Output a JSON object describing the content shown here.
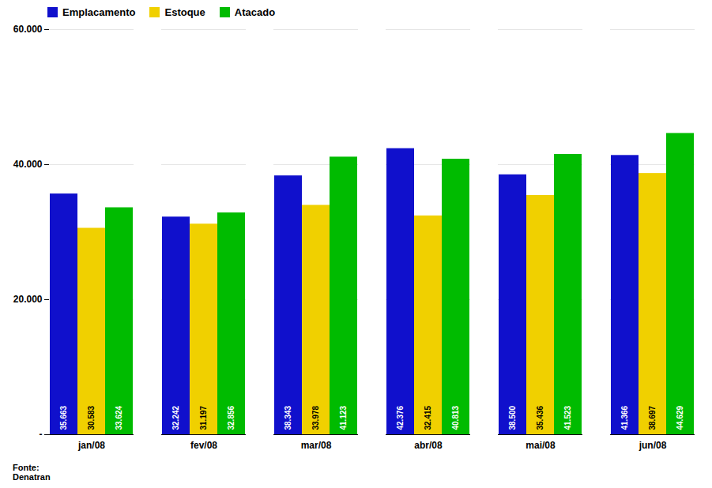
{
  "chart_data": {
    "type": "bar",
    "categories": [
      "jan/08",
      "fev/08",
      "mar/08",
      "abr/08",
      "mai/08",
      "jun/08"
    ],
    "series": [
      {
        "name": "Emplacamento",
        "color": "#1010cc",
        "values": [
          35663,
          32242,
          38343,
          42376,
          38500,
          41366
        ],
        "value_labels": [
          "35.663",
          "32.242",
          "38.343",
          "42.376",
          "38.500",
          "41.366"
        ]
      },
      {
        "name": "Estoque",
        "color": "#f0d000",
        "values": [
          30583,
          31197,
          33978,
          32415,
          35436,
          38697
        ],
        "value_labels": [
          "30.583",
          "31.197",
          "33.978",
          "32.415",
          "35.436",
          "38.697"
        ]
      },
      {
        "name": "Atacado",
        "color": "#00bb00",
        "values": [
          33624,
          32856,
          41123,
          40813,
          41523,
          44629
        ],
        "value_labels": [
          "33.624",
          "32.856",
          "41.123",
          "40.813",
          "41.523",
          "44.629"
        ]
      }
    ],
    "ylim": [
      0,
      60000
    ],
    "yticks": [
      {
        "value": 0,
        "label": "-"
      },
      {
        "value": 20000,
        "label": "20.000"
      },
      {
        "value": 40000,
        "label": "40.000"
      },
      {
        "value": 60000,
        "label": "60.000"
      }
    ],
    "grid": true,
    "legend": "upper left",
    "data_labels": true,
    "annotations": [
      "Fonte:\nDenatran"
    ]
  }
}
